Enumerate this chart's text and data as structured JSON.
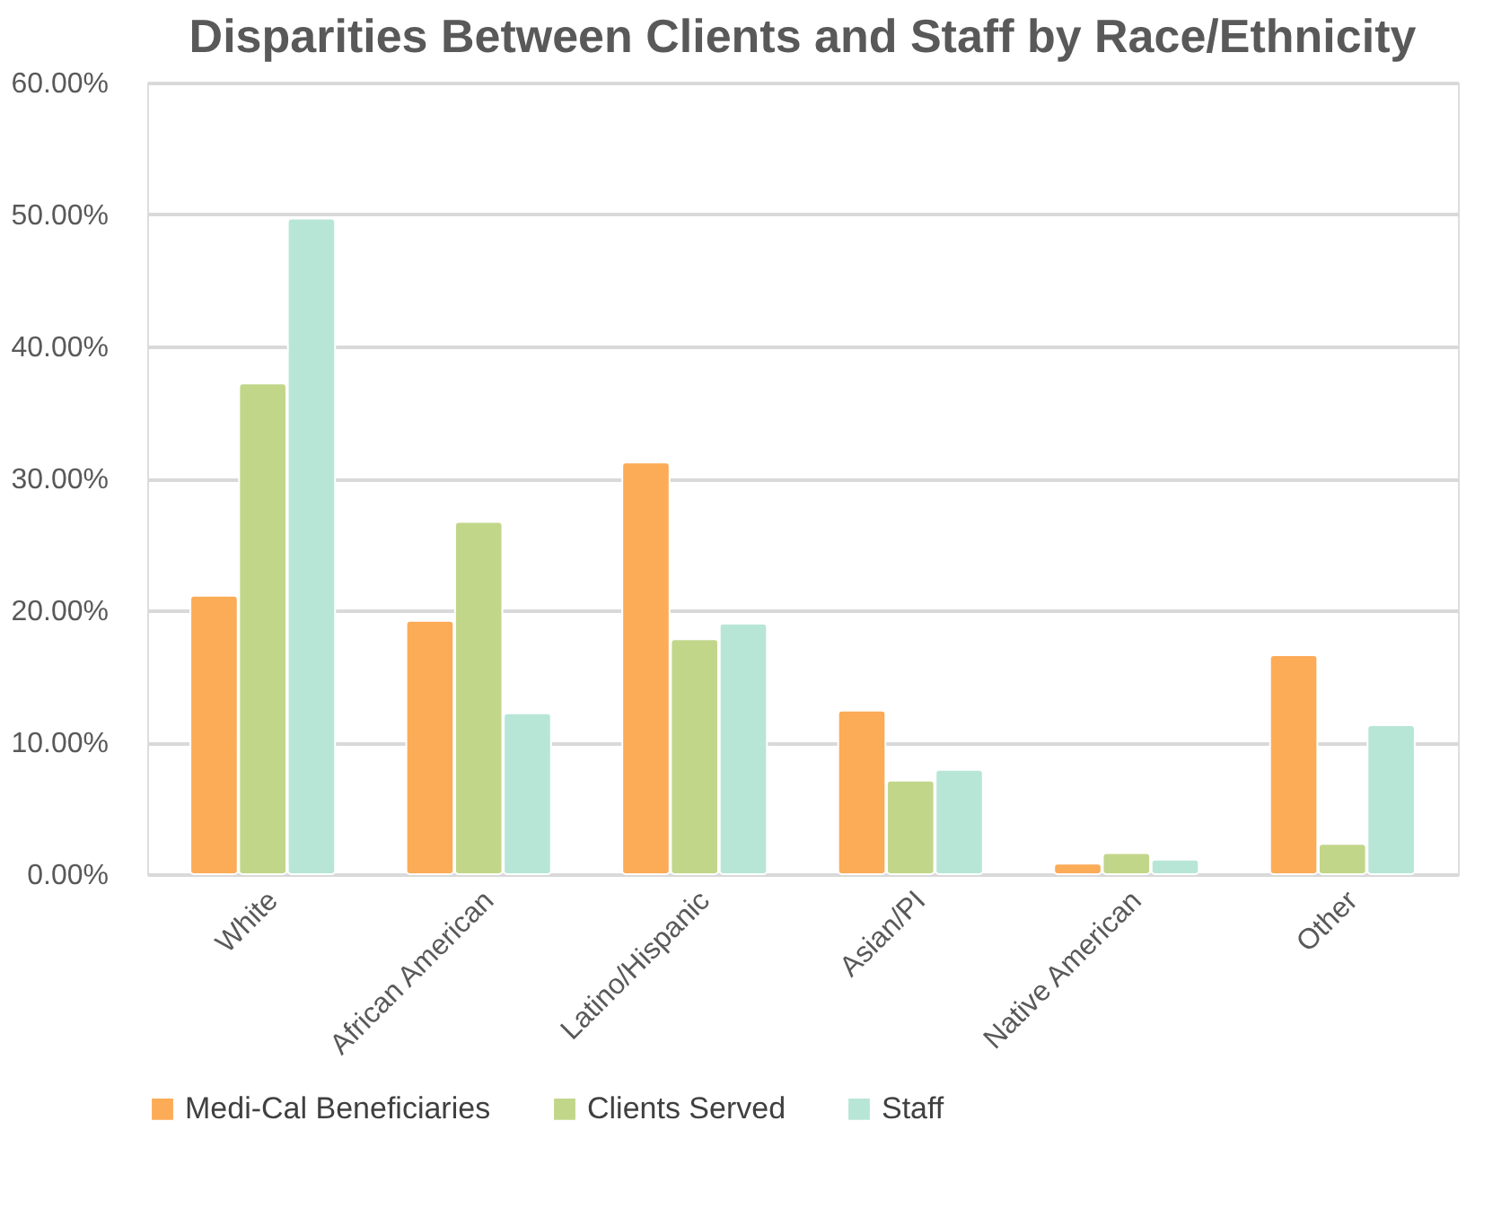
{
  "chart_data": {
    "type": "bar",
    "title": "Disparities Between Clients and Staff by Race/Ethnicity",
    "categories": [
      "White",
      "African American",
      "Latino/Hispanic",
      "Asian/PI",
      "Native American",
      "Other"
    ],
    "series": [
      {
        "name": "Medi-Cal Beneficiaries",
        "color": "#fcab57",
        "values": [
          21.1,
          19.2,
          31.2,
          12.4,
          0.8,
          16.6
        ]
      },
      {
        "name": "Clients Served",
        "color": "#c2d68a",
        "values": [
          37.2,
          26.7,
          17.8,
          7.1,
          1.6,
          2.3
        ]
      },
      {
        "name": "Staff",
        "color": "#b8e6d6",
        "values": [
          49.7,
          12.2,
          19.0,
          7.9,
          1.1,
          11.3
        ]
      }
    ],
    "ylim": [
      0,
      60
    ],
    "yticks": [
      {
        "value": 0,
        "label": "0.00%"
      },
      {
        "value": 10,
        "label": "10.00%"
      },
      {
        "value": 20,
        "label": "20.00%"
      },
      {
        "value": 30,
        "label": "30.00%"
      },
      {
        "value": 40,
        "label": "40.00%"
      },
      {
        "value": 50,
        "label": "50.00%"
      },
      {
        "value": 60,
        "label": "60.00%"
      }
    ],
    "grid": "y",
    "legend": "bottom"
  }
}
